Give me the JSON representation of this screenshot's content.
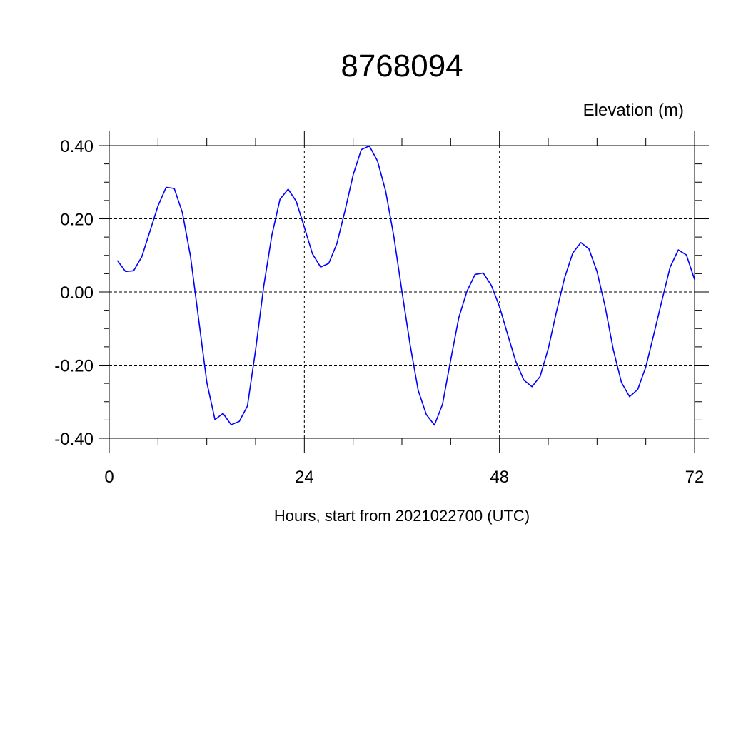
{
  "chart_data": {
    "type": "line",
    "title": "8768094",
    "units_label": "Elevation (m)",
    "xlabel": "Hours, start from 2021022700 (UTC)",
    "ylabel": "",
    "xlim": [
      0,
      72
    ],
    "ylim": [
      -0.4,
      0.4
    ],
    "x_ticks": [
      0,
      24,
      48,
      72
    ],
    "x_tick_labels": [
      "0",
      "24",
      "48",
      "72"
    ],
    "y_ticks": [
      0.4,
      0.2,
      0.0,
      -0.2,
      -0.4
    ],
    "y_tick_labels": [
      "0.40",
      "0.20",
      "0.00",
      "-0.20",
      "-0.40"
    ],
    "grid": true,
    "line_color": "#0000ff",
    "series": [
      {
        "x": [
          1,
          2,
          3,
          4,
          5,
          6,
          7,
          8,
          9,
          10,
          11,
          12,
          13,
          14,
          15,
          16,
          17,
          18,
          19,
          20,
          21,
          22,
          23,
          24,
          25,
          26,
          27,
          28,
          29,
          30,
          31,
          32,
          33,
          34,
          35,
          36,
          37,
          38,
          39,
          40,
          41,
          42,
          43,
          44,
          45,
          46,
          47,
          48,
          49,
          50,
          51,
          52,
          53,
          54,
          55,
          56,
          57,
          58,
          59,
          60,
          61,
          62,
          63,
          64,
          65,
          66,
          67,
          68,
          69,
          70,
          71,
          72
        ],
        "y": [
          0.086,
          0.056,
          0.058,
          0.096,
          0.165,
          0.235,
          0.286,
          0.283,
          0.217,
          0.097,
          -0.075,
          -0.247,
          -0.349,
          -0.332,
          -0.363,
          -0.354,
          -0.312,
          -0.159,
          0.015,
          0.155,
          0.253,
          0.281,
          0.248,
          0.177,
          0.104,
          0.068,
          0.078,
          0.132,
          0.222,
          0.32,
          0.389,
          0.399,
          0.358,
          0.276,
          0.153,
          0.002,
          -0.143,
          -0.269,
          -0.335,
          -0.364,
          -0.307,
          -0.186,
          -0.07,
          0.002,
          0.048,
          0.052,
          0.018,
          -0.04,
          -0.116,
          -0.189,
          -0.241,
          -0.259,
          -0.231,
          -0.155,
          -0.055,
          0.038,
          0.106,
          0.135,
          0.118,
          0.056,
          -0.04,
          -0.157,
          -0.247,
          -0.286,
          -0.267,
          -0.205,
          -0.114,
          -0.022,
          0.068,
          0.115,
          0.101,
          0.034
        ]
      }
    ]
  }
}
